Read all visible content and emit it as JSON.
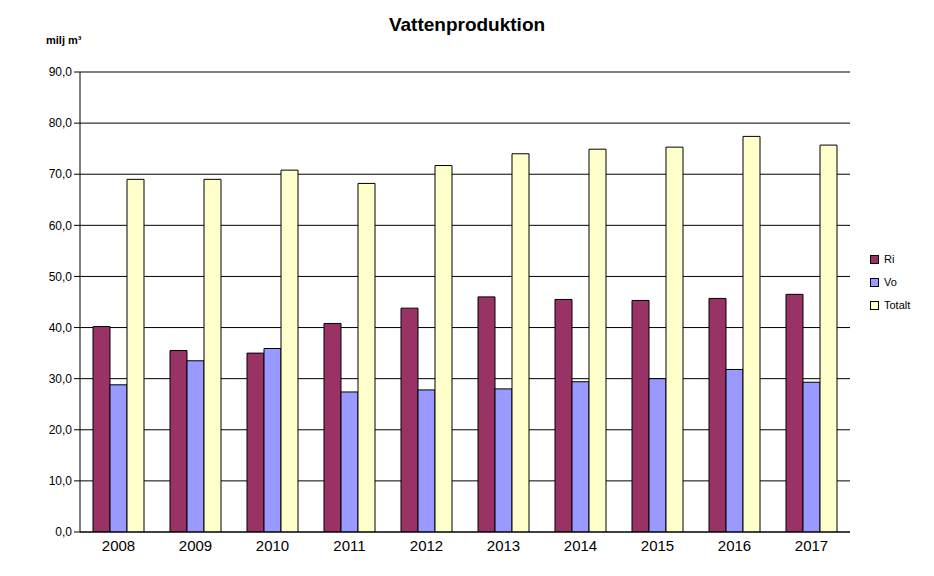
{
  "chart_data": {
    "type": "bar",
    "title": "Vattenproduktion",
    "y_label": "milj m³",
    "categories": [
      "2008",
      "2009",
      "2010",
      "2011",
      "2012",
      "2013",
      "2014",
      "2015",
      "2016",
      "2017"
    ],
    "series": [
      {
        "name": "Ri",
        "color": "#993366",
        "values": [
          40.2,
          35.5,
          35.0,
          40.8,
          43.8,
          46.0,
          45.5,
          45.3,
          45.7,
          46.5
        ]
      },
      {
        "name": "Vo",
        "color": "#9999FF",
        "values": [
          28.8,
          33.5,
          35.9,
          27.4,
          27.8,
          28.0,
          29.4,
          30.0,
          31.8,
          29.3
        ]
      },
      {
        "name": "Totalt",
        "color": "#FFFFCC",
        "values": [
          69.0,
          69.0,
          70.8,
          68.2,
          71.7,
          74.0,
          74.9,
          75.3,
          77.4,
          75.7
        ]
      }
    ],
    "ylim": [
      0,
      90
    ],
    "yticks": [
      {
        "value": 0,
        "label": "0,0"
      },
      {
        "value": 10,
        "label": "10,0"
      },
      {
        "value": 20,
        "label": "20,0"
      },
      {
        "value": 30,
        "label": "30,0"
      },
      {
        "value": 40,
        "label": "40,0"
      },
      {
        "value": 50,
        "label": "50,0"
      },
      {
        "value": 60,
        "label": "60,0"
      },
      {
        "value": 70,
        "label": "70,0"
      },
      {
        "value": 80,
        "label": "80,0"
      },
      {
        "value": 90,
        "label": "90,0"
      }
    ],
    "grid": true,
    "legend": "right"
  }
}
